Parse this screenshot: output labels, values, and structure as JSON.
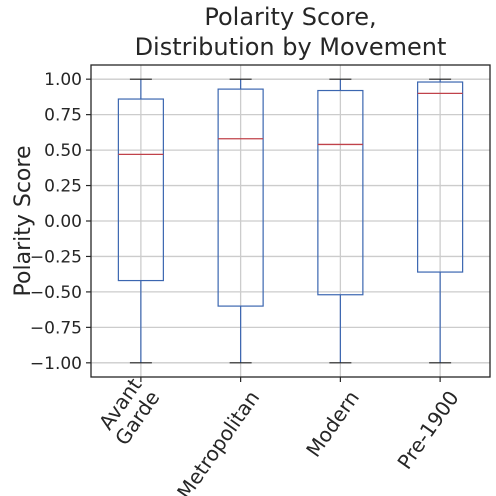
{
  "chart_data": {
    "type": "box",
    "title_lines": [
      "Polarity Score,",
      "Distribution by Movement"
    ],
    "ylabel": "Polarity Score",
    "xlabel": "",
    "ylim": [
      -1.1,
      1.1
    ],
    "yticks": [
      -1.0,
      -0.75,
      -0.5,
      -0.25,
      0.0,
      0.25,
      0.5,
      0.75,
      1.0
    ],
    "ytick_labels": [
      "−1.00",
      "−0.75",
      "−0.50",
      "−0.25",
      "0.00",
      "0.25",
      "0.50",
      "0.75",
      "1.00"
    ],
    "grid": true,
    "categories": [
      {
        "label_lines": [
          "Avant",
          "Garde"
        ],
        "min": -1.0,
        "q1": -0.42,
        "median": 0.47,
        "q3": 0.86,
        "max": 1.0
      },
      {
        "label_lines": [
          "Metropolitan"
        ],
        "min": -1.0,
        "q1": -0.6,
        "median": 0.58,
        "q3": 0.93,
        "max": 1.0
      },
      {
        "label_lines": [
          "Modern"
        ],
        "min": -1.0,
        "q1": -0.52,
        "median": 0.54,
        "q3": 0.92,
        "max": 1.0
      },
      {
        "label_lines": [
          "Pre-1900"
        ],
        "min": -1.0,
        "q1": -0.36,
        "median": 0.9,
        "q3": 0.98,
        "max": 1.0
      }
    ],
    "colors": {
      "box": "#3b66b0",
      "median": "#c0424a",
      "cap": "#262626",
      "grid": "#cccccc"
    }
  }
}
